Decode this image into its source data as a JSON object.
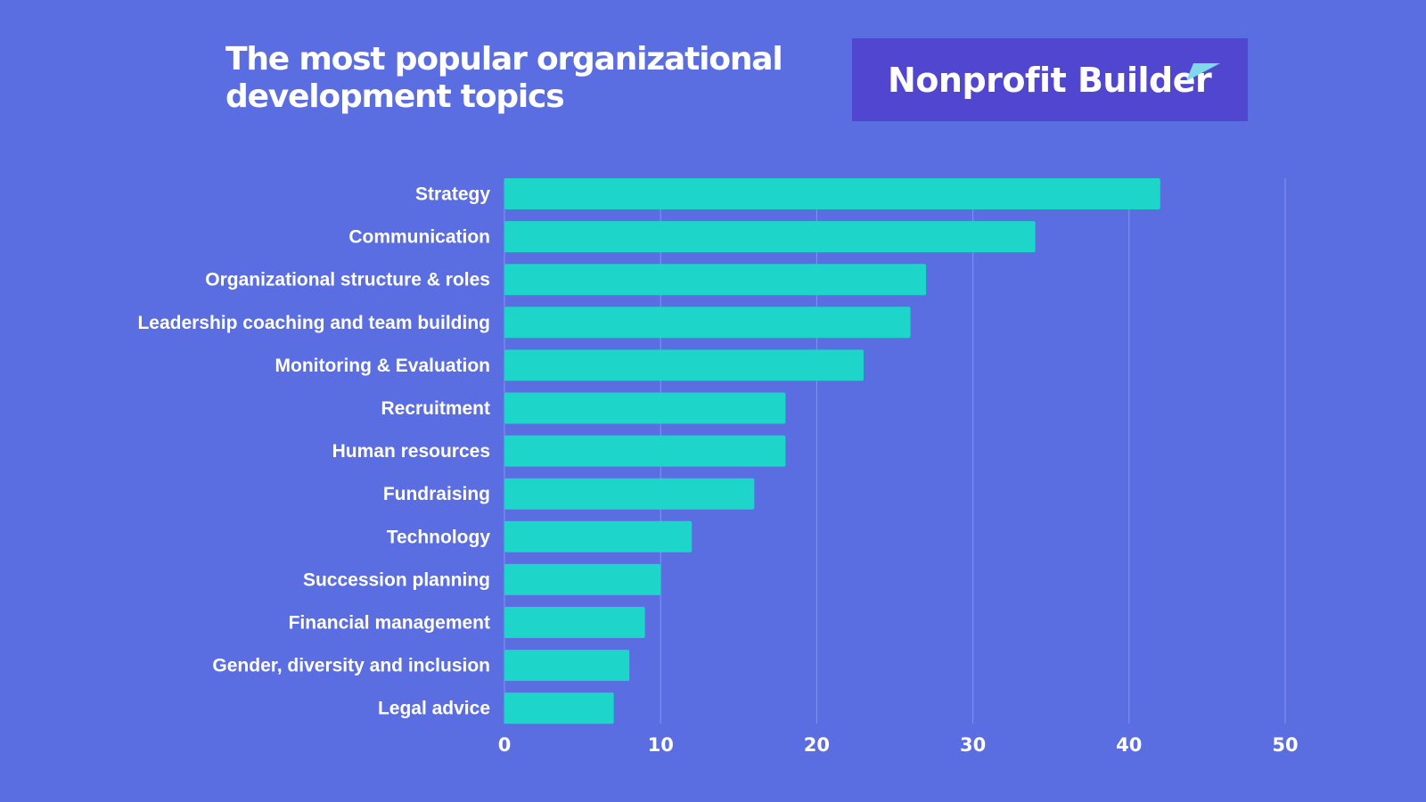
{
  "header": {
    "title": "The most popular organizational development topics",
    "brand": "Nonprofit Builder"
  },
  "colors": {
    "background": "#5a6ee1",
    "bar": "#1dd5c8",
    "logo_box": "#5046cf",
    "logo_mark": "#7fd9ea",
    "text": "#ffffff",
    "grid": "#8593ec"
  },
  "chart_data": {
    "type": "bar",
    "orientation": "horizontal",
    "title": "The most popular organizational development topics",
    "xlabel": "",
    "ylabel": "",
    "categories": [
      "Strategy",
      "Communication",
      "Organizational structure & roles",
      "Leadership coaching and team building",
      "Monitoring & Evaluation",
      "Recruitment",
      "Human resources",
      "Fundraising",
      "Technology",
      "Succession planning",
      "Financial management",
      "Gender, diversity and inclusion",
      "Legal advice"
    ],
    "values": [
      42,
      34,
      27,
      26,
      23,
      18,
      18,
      16,
      12,
      10,
      9,
      8,
      7
    ],
    "xlim": [
      0,
      50
    ],
    "xticks": [
      0,
      10,
      20,
      30,
      40,
      50
    ],
    "grid": "vertical",
    "legend": "none"
  }
}
